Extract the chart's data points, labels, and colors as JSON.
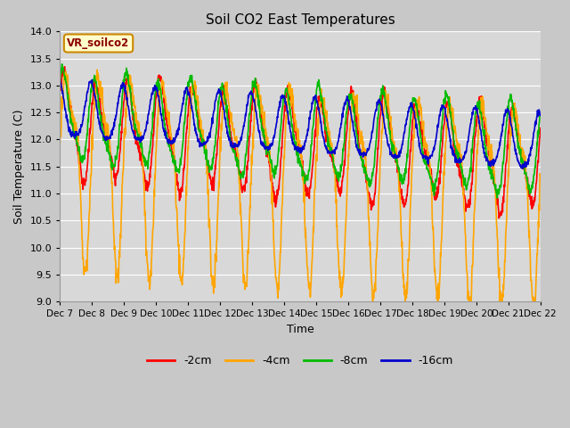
{
  "title": "Soil CO2 East Temperatures",
  "xlabel": "Time",
  "ylabel": "Soil Temperature (C)",
  "ylim": [
    9.0,
    14.0
  ],
  "yticks": [
    9.0,
    9.5,
    10.0,
    10.5,
    11.0,
    11.5,
    12.0,
    12.5,
    13.0,
    13.5,
    14.0
  ],
  "colors": {
    "-2cm": "#ff0000",
    "-4cm": "#ffa500",
    "-8cm": "#00bb00",
    "-16cm": "#0000cc"
  },
  "xtick_labels": [
    "Dec 7",
    "Dec 8",
    "Dec 9",
    "Dec 10",
    "Dec 11",
    "Dec 12",
    "Dec 13",
    "Dec 14",
    "Dec 15",
    "Dec 16",
    "Dec 17",
    "Dec 18",
    "Dec 19",
    "Dec 20",
    "Dec 21",
    "Dec 22"
  ],
  "annotation_text": "VR_soilco2",
  "annotation_bg": "#ffffcc",
  "annotation_border": "#cc8800",
  "fig_bg": "#c8c8c8",
  "plot_bg": "#d8d8d8",
  "legend_labels": [
    "-2cm",
    "-4cm",
    "-8cm",
    "-16cm"
  ],
  "linewidth": 1.2
}
